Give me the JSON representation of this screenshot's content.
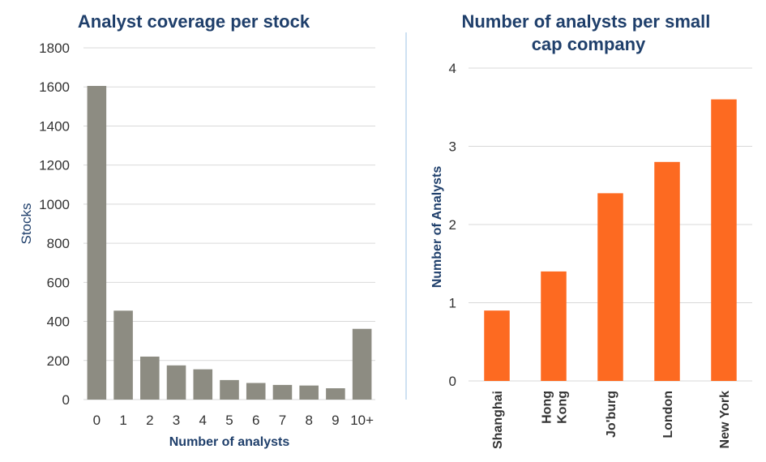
{
  "chart_data": [
    {
      "type": "bar",
      "title": "Analyst coverage per stock",
      "xlabel": "Number of analysts",
      "ylabel": "Stocks",
      "categories": [
        "0",
        "1",
        "2",
        "3",
        "4",
        "5",
        "6",
        "7",
        "8",
        "9",
        "10+"
      ],
      "values": [
        1605,
        455,
        220,
        175,
        155,
        100,
        85,
        75,
        72,
        58,
        362
      ],
      "ylim": [
        0,
        1800
      ],
      "yticks": [
        "0",
        "200",
        "400",
        "600",
        "800",
        "1000",
        "1200",
        "1400",
        "1600",
        "1800"
      ],
      "grid": true,
      "colors": {
        "bar": "#8d8c82"
      }
    },
    {
      "type": "bar",
      "title": "Number of analysts per small cap company",
      "title_lines": [
        "Number of analysts per small",
        "cap company"
      ],
      "xlabel": "",
      "ylabel": "Number of Analysts",
      "categories": [
        "Shanghai",
        "Hong Kong",
        "Jo'burg",
        "London",
        "New York"
      ],
      "category_lines": [
        [
          "Shanghai"
        ],
        [
          "Hong",
          "Kong"
        ],
        [
          "Jo'burg"
        ],
        [
          "London"
        ],
        [
          "New York"
        ]
      ],
      "values": [
        0.9,
        1.4,
        2.4,
        2.8,
        3.6
      ],
      "ylim": [
        0,
        4
      ],
      "yticks": [
        "0",
        "1",
        "2",
        "3",
        "4"
      ],
      "grid": true,
      "colors": {
        "bar": "#fd6a21"
      }
    }
  ],
  "colors": {
    "divider": "#9dc3e6",
    "title": "#1f3f6b"
  }
}
